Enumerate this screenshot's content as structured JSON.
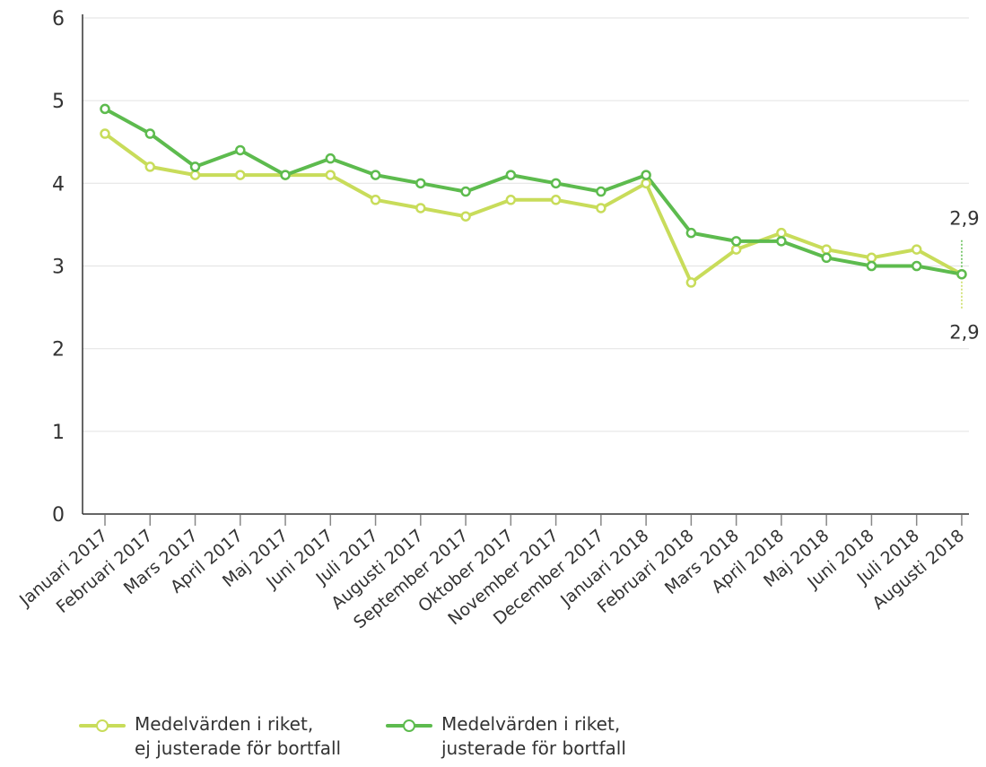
{
  "chart_data": {
    "type": "line",
    "categories": [
      "Januari 2017",
      "Februari 2017",
      "Mars 2017",
      "April 2017",
      "Maj 2017",
      "Juni 2017",
      "Juli 2017",
      "Augusti 2017",
      "September 2017",
      "Oktober 2017",
      "November 2017",
      "December 2017",
      "Januari 2018",
      "Februari 2018",
      "Mars 2018",
      "April 2018",
      "Maj 2018",
      "Juni 2018",
      "Juli 2018",
      "Augusti 2018"
    ],
    "y_ticks": [
      "0",
      "1",
      "2",
      "3",
      "4",
      "5",
      "6"
    ],
    "ylim": [
      0,
      6
    ],
    "grid": true,
    "legend_position": "bottom-left",
    "series": [
      {
        "name": "Medelvärden i riket,\nej justerade för bortfall",
        "color": "#c8dc5a",
        "values": [
          4.6,
          4.2,
          4.1,
          4.1,
          4.1,
          4.1,
          3.8,
          3.7,
          3.6,
          3.8,
          3.8,
          3.7,
          4.0,
          2.8,
          3.2,
          3.4,
          3.2,
          3.1,
          3.2,
          2.9
        ]
      },
      {
        "name": "Medelvärden i riket,\njusterade för bortfall",
        "color": "#5dbb4e",
        "values": [
          4.9,
          4.6,
          4.2,
          4.4,
          4.1,
          4.3,
          4.1,
          4.0,
          3.9,
          4.1,
          4.0,
          3.9,
          4.1,
          3.4,
          3.3,
          3.3,
          3.1,
          3.0,
          3.0,
          2.9
        ]
      }
    ],
    "annotations": [
      {
        "text": "2,9",
        "series": "Medelvärden i riket,\njusterade för bortfall",
        "placement": "above"
      },
      {
        "text": "2,9",
        "series": "Medelvärden i riket,\nej justerade för bortfall",
        "placement": "below"
      }
    ]
  }
}
